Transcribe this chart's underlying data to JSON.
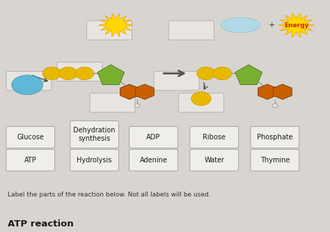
{
  "title": "ATP reaction",
  "subtitle": "Label the parts of the reaction below. Not all labels will be used.",
  "label_boxes_row1": [
    "ATP",
    "Hydrolysis",
    "Adenine",
    "Water",
    "Thymine"
  ],
  "label_boxes_row2": [
    "Glucose",
    "Dehydration\nsynthesis",
    "ADP",
    "Ribose",
    "Phosphate"
  ],
  "bg_color": "#d8d5d0",
  "box_facecolor": "#f0eeeb",
  "box_edgecolor": "#999999",
  "title_color": "#1a1a1a",
  "subtitle_color": "#333333",
  "phosphate_color": "#e8b800",
  "phosphate_edge": "#c89600",
  "ribose_color": "#7ab030",
  "ribose_edge": "#4a7010",
  "adenine_color": "#c86000",
  "adenine_edge": "#7a3800",
  "blob_color": "#60b8d8",
  "arrow_color": "#444444",
  "energy_color": "#FFD700",
  "energy_edge": "#E8A000",
  "energy_text": "#cc2200",
  "water_bubble": "#b0d8e8",
  "blank_box_face": "#e8e5e0",
  "blank_box_edge": "#aaaaaa",
  "connector_color": "#888888"
}
